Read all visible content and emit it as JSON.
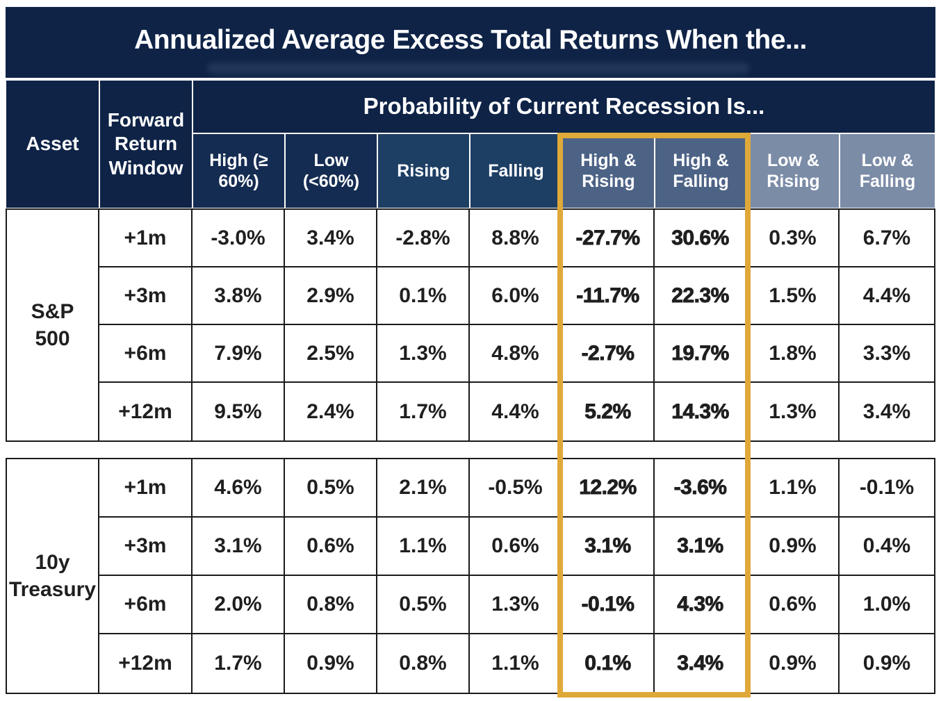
{
  "chart_data": {
    "type": "table",
    "title": "Annualized Average Excess Total Returns When the...",
    "group_header": "Probability of Current Recession Is...",
    "row_header_labels": [
      "Asset",
      "Forward Return Window"
    ],
    "columns": [
      "High (≥ 60%)",
      "Low (<60%)",
      "Rising",
      "Falling",
      "High & Rising",
      "High & Falling",
      "Low & Rising",
      "Low & Falling"
    ],
    "highlighted_columns": [
      "High & Rising",
      "High & Falling"
    ],
    "groups": [
      {
        "asset": "S&P 500",
        "rows": [
          {
            "window": "+1m",
            "values": [
              "-3.0%",
              "3.4%",
              "-2.8%",
              "8.8%",
              "-27.7%",
              "30.6%",
              "0.3%",
              "6.7%"
            ]
          },
          {
            "window": "+3m",
            "values": [
              "3.8%",
              "2.9%",
              "0.1%",
              "6.0%",
              "-11.7%",
              "22.3%",
              "1.5%",
              "4.4%"
            ]
          },
          {
            "window": "+6m",
            "values": [
              "7.9%",
              "2.5%",
              "1.3%",
              "4.8%",
              "-2.7%",
              "19.7%",
              "1.8%",
              "3.3%"
            ]
          },
          {
            "window": "+12m",
            "values": [
              "9.5%",
              "2.4%",
              "1.7%",
              "4.4%",
              "5.2%",
              "14.3%",
              "1.3%",
              "3.4%"
            ]
          }
        ]
      },
      {
        "asset": "10y Treasury",
        "rows": [
          {
            "window": "+1m",
            "values": [
              "4.6%",
              "0.5%",
              "2.1%",
              "-0.5%",
              "12.2%",
              "-3.6%",
              "1.1%",
              "-0.1%"
            ]
          },
          {
            "window": "+3m",
            "values": [
              "3.1%",
              "0.6%",
              "1.1%",
              "0.6%",
              "3.1%",
              "3.1%",
              "0.9%",
              "0.4%"
            ]
          },
          {
            "window": "+6m",
            "values": [
              "2.0%",
              "0.8%",
              "0.5%",
              "1.3%",
              "-0.1%",
              "4.3%",
              "0.6%",
              "1.0%"
            ]
          },
          {
            "window": "+12m",
            "values": [
              "1.7%",
              "0.9%",
              "0.8%",
              "1.1%",
              "0.1%",
              "3.4%",
              "0.9%",
              "0.9%"
            ]
          }
        ]
      }
    ],
    "layout": {
      "highlight_style": "gold outline box around High & Rising and High & Falling columns",
      "grid": "black cell borders in data area, white gridlines in navy header"
    },
    "colors": {
      "navy_deep": "#0F2347",
      "navy_cell": "#152C52",
      "navy_mid": "#1E3F64",
      "slate": "#4D6386",
      "slate_light": "#7B8CA7",
      "gold": "#DFA93A",
      "grid_black": "#1A1A1A",
      "text_dark": "#1F1F1F",
      "header_text": "#FFFFFF"
    }
  }
}
